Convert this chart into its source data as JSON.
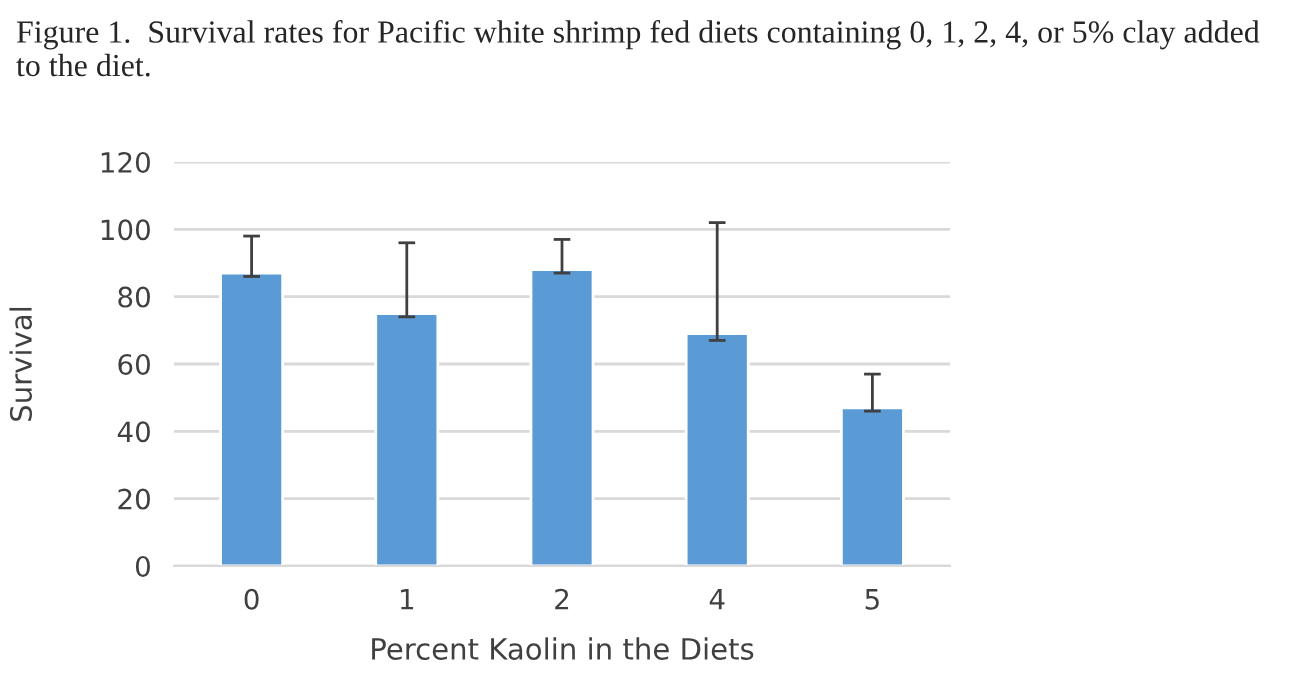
{
  "chart_data": {
    "type": "bar",
    "title": "Figure 1.  Survival rates for Pacific white shrimp fed diets containing 0, 1, 2, 4, or 5% clay added to the diet.",
    "xlabel": "Percent Kaolin in the Diets",
    "ylabel": "Survival",
    "categories": [
      "0",
      "1",
      "2",
      "4",
      "5"
    ],
    "values": [
      87,
      75,
      88,
      69,
      47
    ],
    "errors": [
      [
        86,
        98
      ],
      [
        74,
        96
      ],
      [
        87,
        97
      ],
      [
        67,
        102
      ],
      [
        46,
        57
      ]
    ],
    "color": "#5b9bd5",
    "ylim": [
      0,
      120
    ],
    "yticks": [
      0,
      20,
      40,
      60,
      80,
      100,
      120
    ],
    "grid": "y",
    "legend": false
  }
}
